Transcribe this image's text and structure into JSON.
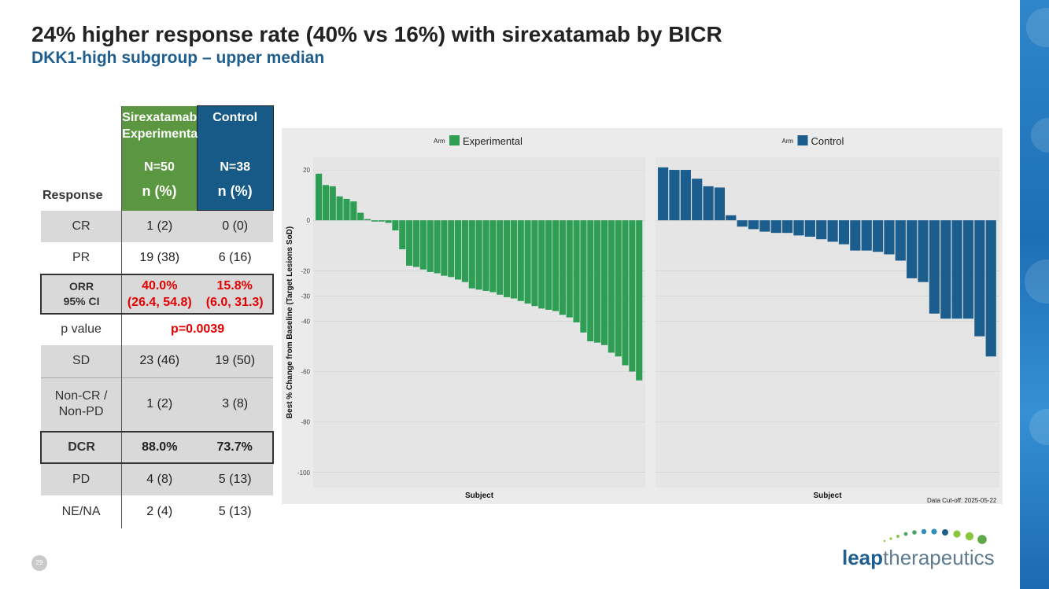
{
  "slide": {
    "title": "24% higher response rate (40% vs 16%) with sirexatamab by BICR",
    "subtitle": "DKK1-high subgroup – upper median",
    "page_number": "29",
    "data_cutoff": "Data Cut-off: 2025-05-22",
    "brand_color": "#1f5f8f"
  },
  "logo": {
    "bold": "leap",
    "light": "therapeutics"
  },
  "table": {
    "header": {
      "response_label": "Response",
      "exp_name": "Sirexatamab Experimental",
      "exp_n": "N=50",
      "exp_unit": "n (%)",
      "ctl_name": "Control",
      "ctl_n": "N=38",
      "ctl_unit": "n (%)"
    },
    "rows": [
      {
        "label": "CR",
        "exp": "1 (2)",
        "ctl": "0 (0)"
      },
      {
        "label": "PR",
        "exp": "19 (38)",
        "ctl": "6 (16)"
      },
      {
        "label_line1": "ORR",
        "label_line2": "95% CI",
        "exp_line1": "40.0%",
        "exp_line2": "(26.4, 54.8)",
        "ctl_line1": "15.8%",
        "ctl_line2": "(6.0, 31.3)"
      },
      {
        "label": "p value",
        "value": "p=0.0039"
      },
      {
        "label": "SD",
        "exp": "23 (46)",
        "ctl": "19 (50)"
      },
      {
        "label": "Non-CR / Non-PD",
        "exp": "1 (2)",
        "ctl": "3 (8)"
      },
      {
        "label": "DCR",
        "exp": "88.0%",
        "ctl": "73.7%"
      },
      {
        "label": "PD",
        "exp": "4 (8)",
        "ctl": "5 (13)"
      },
      {
        "label": "NE/NA",
        "exp": "2 (4)",
        "ctl": "5 (13)"
      }
    ]
  },
  "chart_data": {
    "type": "bar",
    "title": "",
    "ylabel": "Best % Change from Baseline (Target Lesions SoD)",
    "ylim": [
      -106,
      25
    ],
    "yticks": [
      20,
      0,
      -20,
      -30,
      -40,
      -60,
      -80,
      -100
    ],
    "series": [
      {
        "name": "Experimental",
        "legend_title": "Arm",
        "xlabel": "Subject",
        "color": "#2e9e55",
        "values": [
          18.5,
          14,
          13.5,
          9.5,
          8.5,
          7.5,
          3,
          0.5,
          -0.5,
          -0.5,
          -1,
          -4,
          -11.5,
          -18,
          -18.5,
          -19.5,
          -20.5,
          -21,
          -22,
          -22.5,
          -23.5,
          -24.5,
          -27,
          -27.5,
          -28,
          -28.5,
          -29.5,
          -30.5,
          -31,
          -32,
          -33,
          -34,
          -35,
          -35.5,
          -36,
          -37.5,
          -38.5,
          -40.5,
          -44.5,
          -48,
          -48.5,
          -49.5,
          -52.5,
          -54,
          -57.5,
          -60,
          -63.5
        ]
      },
      {
        "name": "Control",
        "legend_title": "Arm",
        "xlabel": "Subject",
        "color": "#1b5e8e",
        "values": [
          21,
          20,
          20,
          16.5,
          13.5,
          13,
          2,
          -2.5,
          -3.5,
          -4.5,
          -5,
          -5,
          -6,
          -6.5,
          -7.5,
          -8.5,
          -9.5,
          -12,
          -12,
          -12.5,
          -13.5,
          -16,
          -23,
          -24.5,
          -37,
          -39,
          -39,
          -39,
          -46,
          -54
        ]
      }
    ]
  }
}
